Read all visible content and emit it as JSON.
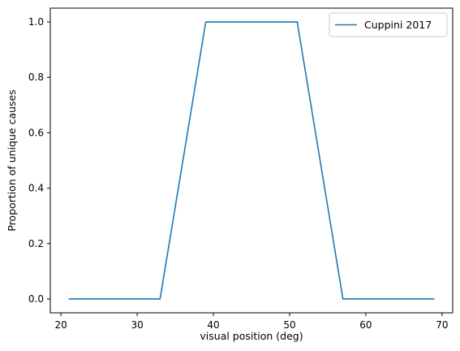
{
  "chart_data": {
    "type": "line",
    "title": "",
    "xlabel": "visual position (deg)",
    "ylabel": "Proportion of unique causes",
    "xlim": [
      18.6,
      71.4
    ],
    "ylim": [
      -0.05,
      1.05
    ],
    "xticks": [
      20,
      30,
      40,
      50,
      60,
      70
    ],
    "yticks": [
      0.0,
      0.2,
      0.4,
      0.6,
      0.8,
      1.0
    ],
    "xtick_labels": [
      "20",
      "30",
      "40",
      "50",
      "60",
      "70"
    ],
    "ytick_labels": [
      "0.0",
      "0.2",
      "0.4",
      "0.6",
      "0.8",
      "1.0"
    ],
    "grid": false,
    "legend_position": "top-right",
    "series": [
      {
        "name": "Cuppini 2017",
        "color": "#1f77b4",
        "x": [
          21,
          33,
          39,
          51,
          57,
          69
        ],
        "y": [
          0.0,
          0.0,
          1.0,
          1.0,
          0.0,
          0.0
        ]
      }
    ]
  }
}
